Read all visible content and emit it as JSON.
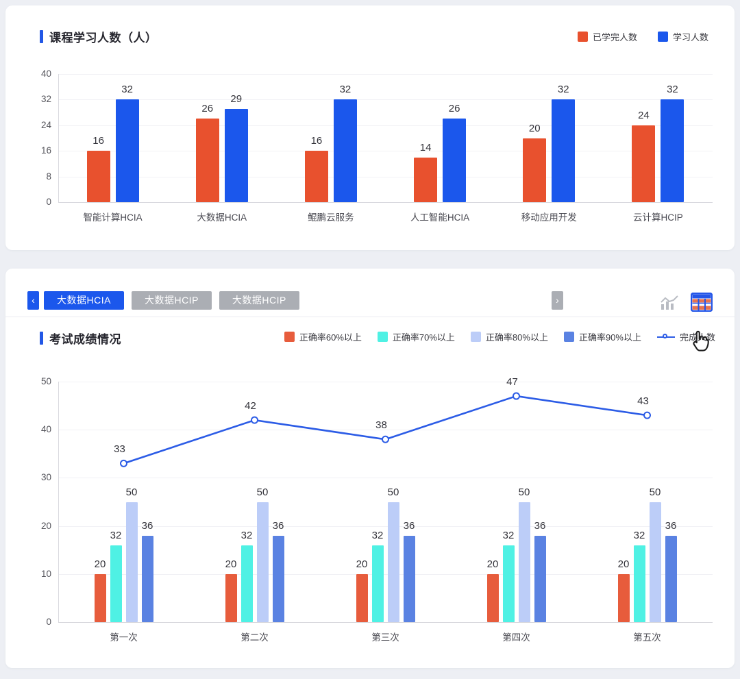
{
  "panel1": {
    "title": "课程学习人数（人）"
  },
  "panel2": {
    "title": "考试成绩情况",
    "tabbar": {
      "left_arrow": "‹",
      "right_arrow": "›",
      "tabs": [
        {
          "label": "大数据HCIA",
          "active": true
        },
        {
          "label": "大数据HCIP",
          "active": false
        },
        {
          "label": "大数据HCIP",
          "active": false
        }
      ],
      "icons": [
        {
          "name": "line-chart-view-icon",
          "active": false,
          "color": "#b9bcc3"
        },
        {
          "name": "table-view-icon",
          "active": true,
          "frame_color": "#2456e8",
          "row_color": "#e8734e"
        }
      ],
      "cursor": "hand-pointer"
    }
  },
  "chart_data": [
    {
      "type": "bar",
      "title": "课程学习人数（人）",
      "categories": [
        "智能计算HCIA",
        "大数据HCIA",
        "鲲鹏云服务",
        "人工智能HCIA",
        "移动应用开发",
        "云计算HCIP"
      ],
      "series": [
        {
          "name": "已学完人数",
          "color": "#e8512e",
          "values": [
            16,
            26,
            16,
            14,
            20,
            24
          ]
        },
        {
          "name": "学习人数",
          "color": "#1b57ec",
          "values": [
            32,
            29,
            32,
            26,
            32,
            32
          ]
        }
      ],
      "ylim": [
        0,
        40
      ],
      "yticks": [
        0,
        8,
        16,
        24,
        32,
        40
      ],
      "grid": true,
      "legend_position": "top-right"
    },
    {
      "type": "bar",
      "subtype": "bar+line",
      "title": "考试成绩情况",
      "categories": [
        "第一次",
        "第二次",
        "第三次",
        "第四次",
        "第五次"
      ],
      "series": [
        {
          "name": "正确率60%以上",
          "color": "#e75c3c",
          "values": [
            20,
            20,
            20,
            20,
            20
          ]
        },
        {
          "name": "正确率70%以上",
          "color": "#4ff1e4",
          "values": [
            32,
            32,
            32,
            32,
            32
          ]
        },
        {
          "name": "正确率80%以上",
          "color": "#bccdf8",
          "values": [
            50,
            50,
            50,
            50,
            50
          ]
        },
        {
          "name": "正确率90%以上",
          "color": "#5a82e2",
          "values": [
            36,
            36,
            36,
            36,
            36
          ]
        }
      ],
      "line_series": {
        "name": "完成人数",
        "color": "#2c5ce6",
        "values": [
          33,
          42,
          38,
          47,
          43
        ]
      },
      "ylim": [
        0,
        50
      ],
      "yticks": [
        0,
        10,
        20,
        30,
        40,
        50
      ],
      "grid": true,
      "bar_display_scale": 0.5,
      "legend_position": "top"
    }
  ]
}
